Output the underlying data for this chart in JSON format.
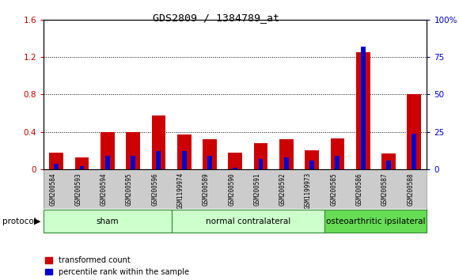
{
  "title": "GDS2809 / 1384789_at",
  "samples": [
    "GSM200584",
    "GSM200593",
    "GSM200594",
    "GSM200595",
    "GSM200596",
    "GSM1199974",
    "GSM200589",
    "GSM200590",
    "GSM200591",
    "GSM200592",
    "GSM1199973",
    "GSM200585",
    "GSM200586",
    "GSM200587",
    "GSM200588"
  ],
  "red_values": [
    0.18,
    0.13,
    0.4,
    0.4,
    0.58,
    0.37,
    0.32,
    0.18,
    0.28,
    0.32,
    0.2,
    0.33,
    1.25,
    0.17,
    0.8
  ],
  "blue_pct": [
    4,
    2,
    9,
    9,
    12,
    12,
    9,
    1,
    7,
    8,
    6,
    9,
    82,
    6,
    24
  ],
  "ylim_left": [
    0,
    1.6
  ],
  "ylim_right": [
    0,
    100
  ],
  "yticks_left": [
    0,
    0.4,
    0.8,
    1.2,
    1.6
  ],
  "yticks_right": [
    0,
    25,
    50,
    75,
    100
  ],
  "bar_width": 0.55,
  "blue_bar_width": 0.18,
  "red_color": "#cc0000",
  "blue_color": "#0000cc",
  "bg_color": "#ffffff",
  "label_box_color": "#cccccc",
  "legend_red": "transformed count",
  "legend_blue": "percentile rank within the sample",
  "protocol_label": "protocol",
  "group_labels": [
    "sham",
    "normal contralateral",
    "osteoarthritic ipsilateral"
  ],
  "group_xstarts": [
    -0.5,
    4.5,
    10.5
  ],
  "group_xends": [
    4.5,
    10.5,
    14.5
  ],
  "group_colors": [
    "#ccffcc",
    "#ccffcc",
    "#66dd55"
  ],
  "group_edge_color": "#338833",
  "right_tick_color": "#0000cc",
  "left_tick_color": "#cc0000"
}
